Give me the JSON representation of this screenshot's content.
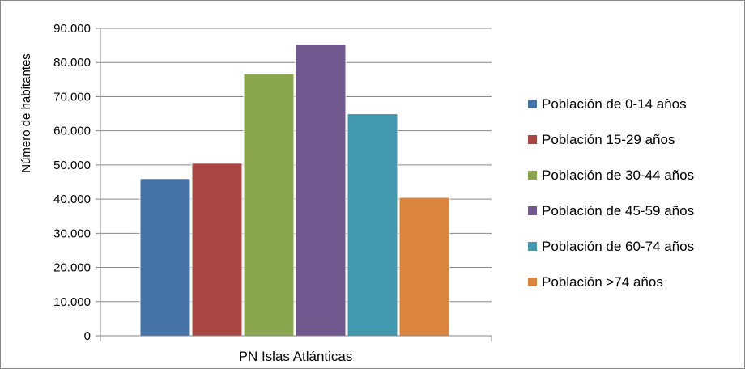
{
  "chart_data": {
    "type": "bar",
    "categories": [
      "PN Islas Atlánticas"
    ],
    "series": [
      {
        "name": "Población de 0-14 años",
        "values": [
          46000
        ],
        "color": "#4572A7"
      },
      {
        "name": "Población 15-29 años",
        "values": [
          50500
        ],
        "color": "#AA4643"
      },
      {
        "name": "Población de 30-44 años",
        "values": [
          76700
        ],
        "color": "#89A54E"
      },
      {
        "name": "Población de 45-59 años",
        "values": [
          85300
        ],
        "color": "#71588F"
      },
      {
        "name": "Población de 60-74 años",
        "values": [
          65000
        ],
        "color": "#4198AF"
      },
      {
        "name": "Población >74 años",
        "values": [
          40500
        ],
        "color": "#DB843D"
      }
    ],
    "ylabel": "Número de habitantes",
    "ylim": [
      0,
      90000
    ],
    "yticks": [
      0,
      10000,
      20000,
      30000,
      40000,
      50000,
      60000,
      70000,
      80000,
      90000
    ],
    "ytick_labels": [
      "0",
      "10.000",
      "20.000",
      "30.000",
      "40.000",
      "50.000",
      "60.000",
      "70.000",
      "80.000",
      "90.000"
    ],
    "grid": true,
    "legend_position": "right"
  }
}
